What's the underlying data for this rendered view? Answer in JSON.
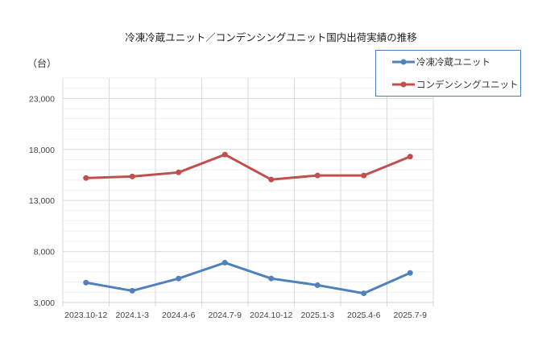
{
  "chart_data": {
    "type": "line",
    "title": "冷凍冷蔵ユニット／コンデンシングユニット国内出荷実績の推移",
    "ylabel": "（台）",
    "xlabel": "",
    "categories": [
      "2023.10-12",
      "2024.1-3",
      "2024.4-6",
      "2024.7-9",
      "2024.10-12",
      "2025.1-3",
      "2025.4-6",
      "2025.7-9"
    ],
    "ylim": [
      3000,
      25000
    ],
    "yticks": [
      3000,
      8000,
      13000,
      18000,
      23000
    ],
    "ytick_labels": [
      "3,000",
      "8,000",
      "13,000",
      "18,000",
      "23,000"
    ],
    "grid": true,
    "legend_position": "top-right",
    "series": [
      {
        "name": "冷凍冷蔵ユニット",
        "color": "#4f81bd",
        "values": [
          4950,
          4150,
          5350,
          6900,
          5350,
          4700,
          3900,
          5900
        ]
      },
      {
        "name": "コンデンシングユニット",
        "color": "#c0504d",
        "values": [
          15200,
          15350,
          15750,
          17500,
          15050,
          15450,
          15450,
          17300
        ]
      }
    ]
  }
}
